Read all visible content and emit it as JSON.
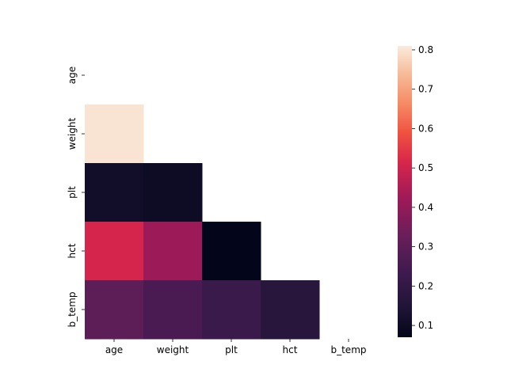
{
  "chart_data": {
    "type": "heatmap",
    "title": "",
    "xlabel": "",
    "ylabel": "",
    "x_categories": [
      "age",
      "weight",
      "plt",
      "hct",
      "b_temp"
    ],
    "y_categories": [
      "age",
      "weight",
      "plt",
      "hct",
      "b_temp"
    ],
    "mask": "upper-triangle-including-diagonal",
    "cells": [
      {
        "row": "weight",
        "col": "age",
        "value": 0.8
      },
      {
        "row": "plt",
        "col": "age",
        "value": 0.11
      },
      {
        "row": "plt",
        "col": "weight",
        "value": 0.1
      },
      {
        "row": "hct",
        "col": "age",
        "value": 0.51
      },
      {
        "row": "hct",
        "col": "weight",
        "value": 0.42
      },
      {
        "row": "hct",
        "col": "plt",
        "value": 0.07
      },
      {
        "row": "b_temp",
        "col": "age",
        "value": 0.3
      },
      {
        "row": "b_temp",
        "col": "weight",
        "value": 0.26
      },
      {
        "row": "b_temp",
        "col": "plt",
        "value": 0.22
      },
      {
        "row": "b_temp",
        "col": "hct",
        "value": 0.17
      }
    ],
    "colorbar": {
      "colormap": "rocket",
      "range": [
        0.07,
        0.81
      ],
      "ticks": [
        0.1,
        0.2,
        0.3,
        0.4,
        0.5,
        0.6,
        0.7,
        0.8
      ],
      "tick_labels": [
        "0.1",
        "0.2",
        "0.3",
        "0.4",
        "0.5",
        "0.6",
        "0.7",
        "0.8"
      ],
      "placement": "right"
    },
    "grid": false
  }
}
